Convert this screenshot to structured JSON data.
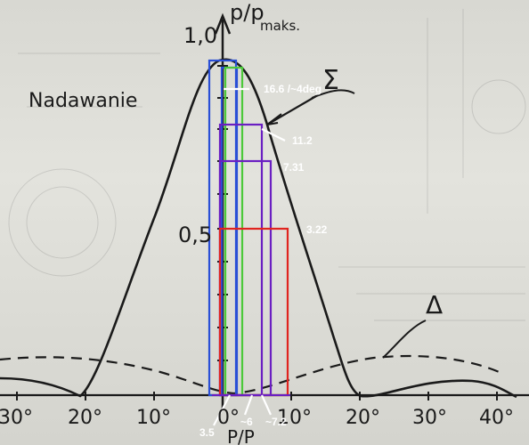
{
  "diagram": {
    "y_axis_label": "p/p",
    "y_axis_label_sub": "maks.",
    "x_axis_label": "P/P",
    "main_label": "Nadawanie",
    "sum_symbol": "Σ",
    "delta_symbol": "Δ",
    "y_ticks": [
      "1,0",
      "0,5"
    ],
    "x_ticks": [
      "30°",
      "20°",
      "10°",
      "0°",
      "10°",
      "20°",
      "30°",
      "40°"
    ],
    "annotations": [
      "16.6 /~4deg",
      "11.2",
      "7.31",
      "3.22",
      "3.5",
      "~6",
      "~7.2"
    ],
    "colors": {
      "blue": "#2a4fd6",
      "green": "#4cc93a",
      "purple": "#6a1fc2",
      "red": "#e0241f",
      "white": "#ffffff",
      "ink": "#1a1a1a"
    }
  }
}
